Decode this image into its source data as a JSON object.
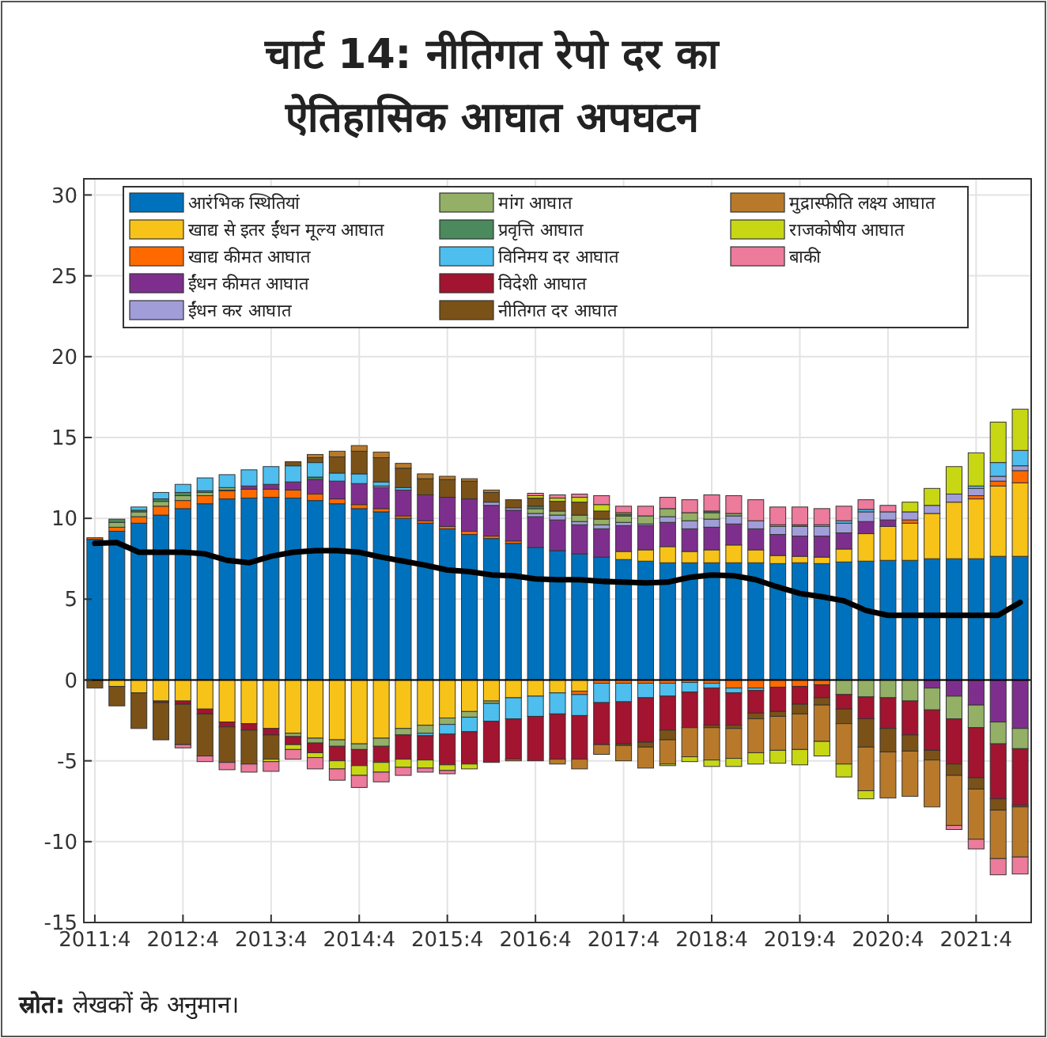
{
  "chart_data": {
    "type": "bar",
    "stacked": true,
    "title": "चार्ट 14: नीतिगत रेपो दर का ऐतिहासिक आघात अपघटन",
    "annotations": [
      "स्रोत: लेखकों के अनुमान।"
    ],
    "categories": [
      "2011:4",
      null,
      null,
      null,
      "2012:4",
      null,
      null,
      null,
      "2013:4",
      null,
      null,
      null,
      "2014:4",
      null,
      null,
      null,
      "2015:4",
      null,
      null,
      null,
      "2016:4",
      null,
      null,
      null,
      "2017:4",
      null,
      null,
      null,
      "2018:4",
      null,
      null,
      null,
      "2019:4",
      null,
      null,
      null,
      "2020:4",
      null,
      null,
      null,
      "2021:4",
      null,
      null
    ],
    "ylim": [
      -15,
      31
    ],
    "yticks": [
      -15,
      -10,
      -5,
      0,
      5,
      10,
      15,
      20,
      25,
      30
    ],
    "grid": true,
    "legend": "top",
    "series": [
      {
        "name": "आरंभिक स्थितियां",
        "color": "#0072bd",
        "values": [
          8.7,
          9.2,
          9.7,
          10.2,
          10.6,
          10.9,
          11.2,
          11.25,
          11.3,
          11.25,
          11.1,
          10.9,
          10.6,
          10.4,
          10.0,
          9.7,
          9.35,
          9.0,
          8.75,
          8.45,
          8.2,
          8.0,
          7.8,
          7.6,
          7.45,
          7.35,
          7.25,
          7.25,
          7.25,
          7.25,
          7.25,
          7.2,
          7.25,
          7.2,
          7.3,
          7.35,
          7.4,
          7.4,
          7.5,
          7.5,
          7.5,
          7.65,
          7.65
        ]
      },
      {
        "name": "खाद्य से इतर ईंधन मूल्य आघात",
        "color": "#f7c318",
        "values": [
          0,
          -0.4,
          -0.8,
          -1.3,
          -1.3,
          -1.8,
          -2.6,
          -2.7,
          -3.0,
          -3.3,
          -3.6,
          -3.7,
          -3.95,
          -3.6,
          -3.0,
          -2.8,
          -2.35,
          -1.95,
          -1.3,
          -1.1,
          -1.0,
          -0.8,
          -0.7,
          0,
          0.5,
          0.7,
          1.0,
          0.7,
          0.8,
          1.1,
          0.8,
          0.5,
          0.4,
          0.4,
          0.8,
          1.7,
          2.1,
          2.3,
          2.8,
          3.5,
          3.7,
          4.35,
          4.55
        ]
      },
      {
        "name": "खाद्य कीमत आघात",
        "color": "#ff6a00",
        "values": [
          0.1,
          0.25,
          0.4,
          0.55,
          0.5,
          0.5,
          0.5,
          0.55,
          0.5,
          0.5,
          0.4,
          0.3,
          0.25,
          0.2,
          0.15,
          0.15,
          0.15,
          0.2,
          0.15,
          0.15,
          0,
          0,
          -0.2,
          -0.2,
          -0.2,
          -0.2,
          -0.2,
          -0.15,
          -0.2,
          -0.5,
          -0.5,
          -0.45,
          -0.4,
          -0.3,
          0,
          0,
          0,
          0.2,
          0,
          0,
          0.2,
          0.3,
          0.75
        ]
      },
      {
        "name": "ईंधन कीमत आघात",
        "color": "#7e2f8e",
        "values": [
          0,
          0,
          0,
          0,
          0,
          0,
          0.05,
          0.2,
          0.3,
          0.5,
          0.9,
          1.1,
          1.3,
          1.3,
          1.6,
          1.6,
          1.8,
          2.0,
          1.9,
          1.9,
          1.9,
          1.9,
          1.8,
          1.75,
          1.6,
          1.5,
          1.5,
          1.4,
          1.4,
          1.3,
          1.3,
          1.3,
          1.25,
          1.3,
          1.0,
          0.75,
          0.4,
          0,
          -0.5,
          -1.0,
          -1.55,
          -2.6,
          -3.0
        ]
      },
      {
        "name": "ईंधन कर आघात",
        "color": "#a19dd9",
        "values": [
          0,
          0,
          0,
          0,
          0,
          0,
          0,
          0,
          0,
          0,
          0,
          0,
          0,
          0.1,
          0,
          0,
          0,
          0,
          0.2,
          0.15,
          0.2,
          0.3,
          0.2,
          0.25,
          0.2,
          0.1,
          0.35,
          0.5,
          0.5,
          0.5,
          0.5,
          0.5,
          0.6,
          0.6,
          0.6,
          0.6,
          0.5,
          0.5,
          0.5,
          0.5,
          0.45,
          0.3,
          0.3
        ]
      },
      {
        "name": "मांग आघात",
        "color": "#93b066",
        "values": [
          0,
          0.3,
          0.3,
          0.3,
          0.3,
          0.2,
          0.15,
          0,
          0,
          -0.2,
          -0.3,
          -0.4,
          -0.35,
          -0.5,
          -0.4,
          -0.5,
          -0.4,
          -0.35,
          -0.15,
          0,
          0.3,
          0.25,
          0.4,
          0.35,
          0.4,
          0.5,
          0.5,
          0.5,
          0.4,
          0.15,
          0,
          0.1,
          0,
          0,
          -0.9,
          -1.05,
          -1.1,
          -1.3,
          -1.35,
          -1.4,
          -1.4,
          -1.35,
          -1.25
        ]
      },
      {
        "name": "प्रवृत्ति आघात",
        "color": "#4a8a5c",
        "values": [
          0,
          0.2,
          0.1,
          0.15,
          0.2,
          0.1,
          0,
          0,
          0,
          0,
          0.15,
          0,
          0,
          0,
          0,
          0,
          0,
          0,
          0,
          0,
          0.15,
          0,
          0,
          0,
          0.1,
          0,
          0,
          0,
          0.1,
          0,
          0,
          0,
          0.1,
          0,
          0,
          0,
          0,
          0,
          0,
          0,
          0,
          0,
          0
        ]
      },
      {
        "name": "विनिमय दर आघात",
        "color": "#4dbeee",
        "values": [
          0,
          0,
          0.2,
          0.4,
          0.5,
          0.8,
          0.8,
          1.0,
          1.1,
          1.0,
          0.9,
          0.5,
          0.6,
          0.25,
          0.15,
          -0.15,
          -0.6,
          -0.9,
          -1.1,
          -1.3,
          -1.25,
          -1.3,
          -1.3,
          -1.2,
          -1.15,
          -0.9,
          -0.8,
          -0.6,
          -0.3,
          -0.3,
          -0.15,
          0,
          0,
          0.1,
          0.15,
          0.15,
          0,
          0,
          0,
          0,
          0.15,
          0.85,
          0.95
        ]
      },
      {
        "name": "विदेशी आघात",
        "color": "#a2142f",
        "values": [
          0,
          0,
          0,
          -0.1,
          -0.2,
          -0.3,
          -0.3,
          -0.4,
          -0.4,
          -0.5,
          -0.6,
          -0.9,
          -1.0,
          -1.0,
          -1.5,
          -1.5,
          -1.9,
          -2.0,
          -2.55,
          -2.5,
          -2.75,
          -2.8,
          -2.7,
          -2.6,
          -2.6,
          -2.75,
          -2.1,
          -2.2,
          -2.3,
          -2.0,
          -1.4,
          -1.5,
          -1.1,
          -0.8,
          -0.9,
          -1.35,
          -1.9,
          -2.1,
          -2.5,
          -2.8,
          -3.1,
          -3.4,
          -3.5
        ]
      },
      {
        "name": "नीतिगत दर आघात",
        "color": "#7a5218",
        "values": [
          -0.5,
          -1.2,
          -2.2,
          -2.3,
          -2.5,
          -2.6,
          -2.2,
          -2.1,
          -1.5,
          0.25,
          0.3,
          1.0,
          1.4,
          1.5,
          1.2,
          1.0,
          1.1,
          1.1,
          0.6,
          0.5,
          0.5,
          0.6,
          0.8,
          0.5,
          -0.1,
          -0.3,
          -0.6,
          0,
          -0.15,
          -0.2,
          -0.35,
          -0.3,
          -0.6,
          -0.45,
          -0.9,
          -1.75,
          -1.45,
          -1.0,
          -0.6,
          -0.7,
          -0.7,
          -0.7,
          -0.1
        ]
      },
      {
        "name": "मुद्रास्फीति लक्ष्य आघात",
        "color": "#b87a2a",
        "values": [
          0,
          0,
          0,
          0,
          0,
          0,
          0,
          0,
          0,
          0,
          0.2,
          0.35,
          0.35,
          0.35,
          0.3,
          0.3,
          0.2,
          0.15,
          0.15,
          -0.1,
          0,
          -0.3,
          -0.6,
          -0.6,
          -0.95,
          -1.3,
          -1.5,
          -1.8,
          -2.0,
          -1.85,
          -2.1,
          -2.1,
          -2.2,
          -2.25,
          -2.5,
          -2.7,
          -2.85,
          -2.8,
          -2.9,
          -3.1,
          -3.1,
          -3.0,
          -3.1
        ]
      },
      {
        "name": "राजकोषीय आघात",
        "color": "#c8d714",
        "values": [
          0,
          0,
          0,
          0,
          0,
          0,
          0,
          0,
          -0.15,
          -0.3,
          -0.3,
          -0.5,
          -0.6,
          -0.6,
          -0.5,
          -0.5,
          -0.35,
          -0.3,
          0,
          0,
          0.15,
          0.2,
          0.3,
          0.4,
          0.1,
          0,
          -0.1,
          -0.3,
          -0.4,
          -0.5,
          -0.7,
          -0.8,
          -0.95,
          -0.9,
          -0.8,
          -0.5,
          0,
          0.6,
          1.05,
          1.7,
          2.05,
          2.5,
          2.55
        ]
      },
      {
        "name": "बाकी",
        "color": "#ec7b9c",
        "values": [
          0,
          0,
          0,
          0,
          -0.2,
          -0.35,
          -0.45,
          -0.5,
          -0.6,
          -0.6,
          -0.7,
          -0.7,
          -0.75,
          -0.6,
          -0.5,
          -0.25,
          -0.2,
          0,
          0,
          0,
          0.15,
          0.2,
          0.2,
          0.55,
          0.4,
          0.6,
          0.7,
          0.8,
          1.0,
          1.1,
          1.3,
          1.1,
          1.1,
          1.0,
          0.9,
          0.6,
          0.4,
          0,
          0,
          -0.25,
          -0.6,
          -1.0,
          -1.05
        ]
      },
      {
        "type": "line",
        "color": "#000000",
        "values": [
          8.45,
          8.5,
          7.9,
          7.9,
          7.9,
          7.8,
          7.4,
          7.25,
          7.65,
          7.9,
          8.0,
          8.0,
          7.9,
          7.6,
          7.35,
          7.1,
          6.8,
          6.7,
          6.5,
          6.45,
          6.25,
          6.2,
          6.2,
          6.1,
          6.05,
          6.0,
          6.05,
          6.35,
          6.5,
          6.45,
          6.2,
          5.75,
          5.35,
          5.15,
          4.9,
          4.3,
          4.0,
          4.0,
          4.0,
          4.0,
          4.0,
          4.0,
          4.8
        ]
      }
    ]
  }
}
